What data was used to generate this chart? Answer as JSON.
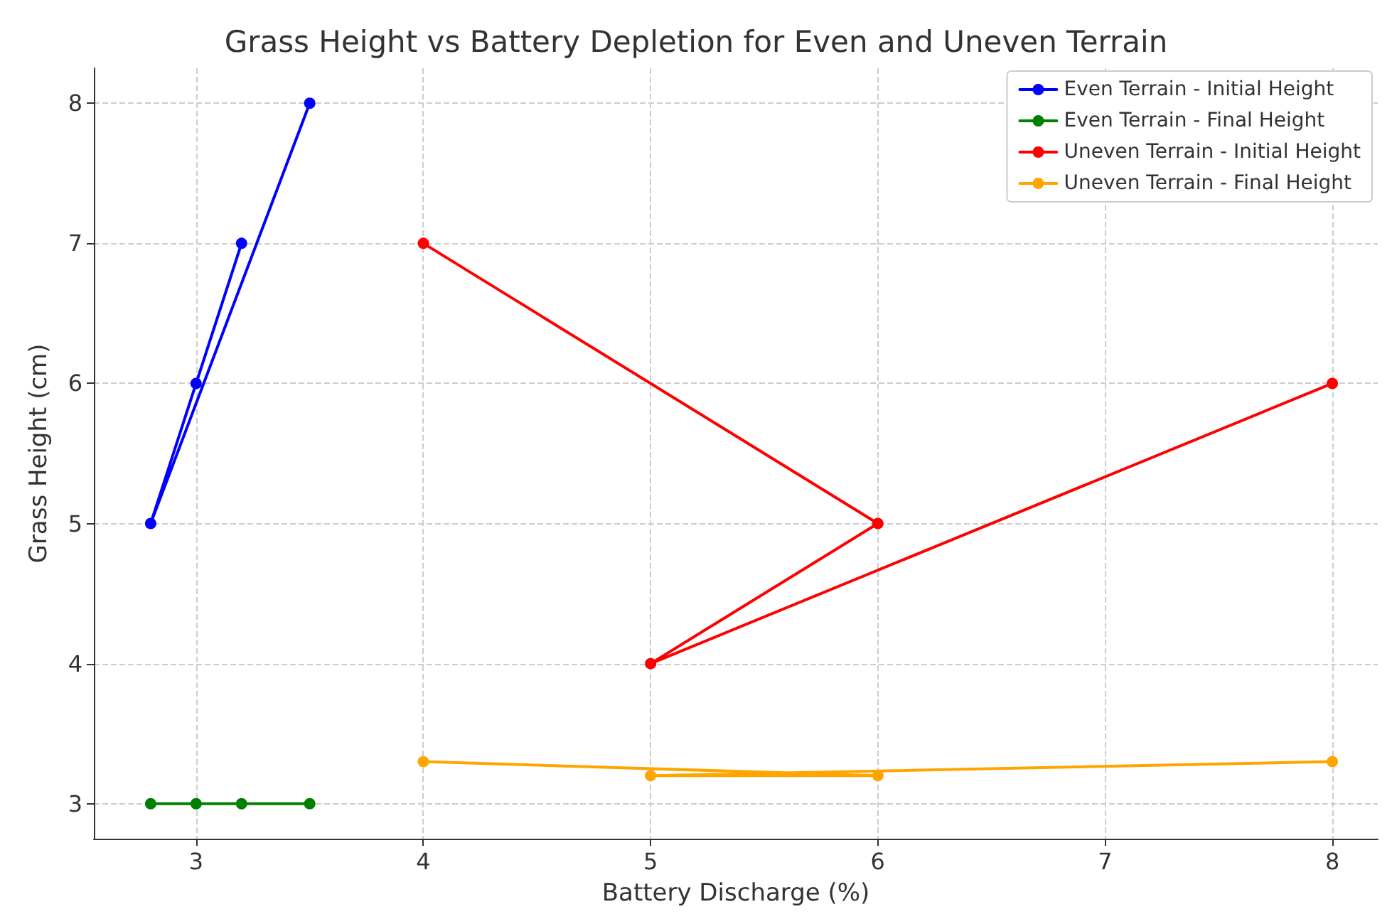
{
  "chart_data": {
    "type": "line",
    "title": "Grass Height vs Battery Depletion for Even and Uneven Terrain",
    "xlabel": "Battery Discharge (%)",
    "ylabel": "Grass Height (cm)",
    "series": [
      {
        "name": "Even Terrain - Initial Height",
        "color": "#0000ff",
        "x": [
          3,
          3.2,
          2.8,
          3.5
        ],
        "values": [
          6,
          7,
          5,
          8
        ]
      },
      {
        "name": "Even Terrain - Final Height",
        "color": "#008000",
        "x": [
          3,
          3.2,
          2.8,
          3.5
        ],
        "values": [
          3,
          3,
          3,
          3
        ]
      },
      {
        "name": "Uneven Terrain - Initial Height",
        "color": "#ff0000",
        "x": [
          4,
          6,
          5,
          8
        ],
        "values": [
          7,
          5,
          4,
          6
        ]
      },
      {
        "name": "Uneven Terrain - Final Height",
        "color": "#ffa500",
        "x": [
          4,
          6,
          5,
          8
        ],
        "values": [
          3.3,
          3.2,
          3.2,
          3.3
        ]
      }
    ],
    "xlim": [
      2.55,
      8.2
    ],
    "xticks": [
      3,
      4,
      5,
      6,
      7,
      8
    ],
    "ylim": [
      2.75,
      8.25
    ],
    "yticks": [
      3,
      4,
      5,
      6,
      7,
      8
    ],
    "grid": true,
    "legend": "top right",
    "marker": "circle",
    "line_style": "solid"
  }
}
